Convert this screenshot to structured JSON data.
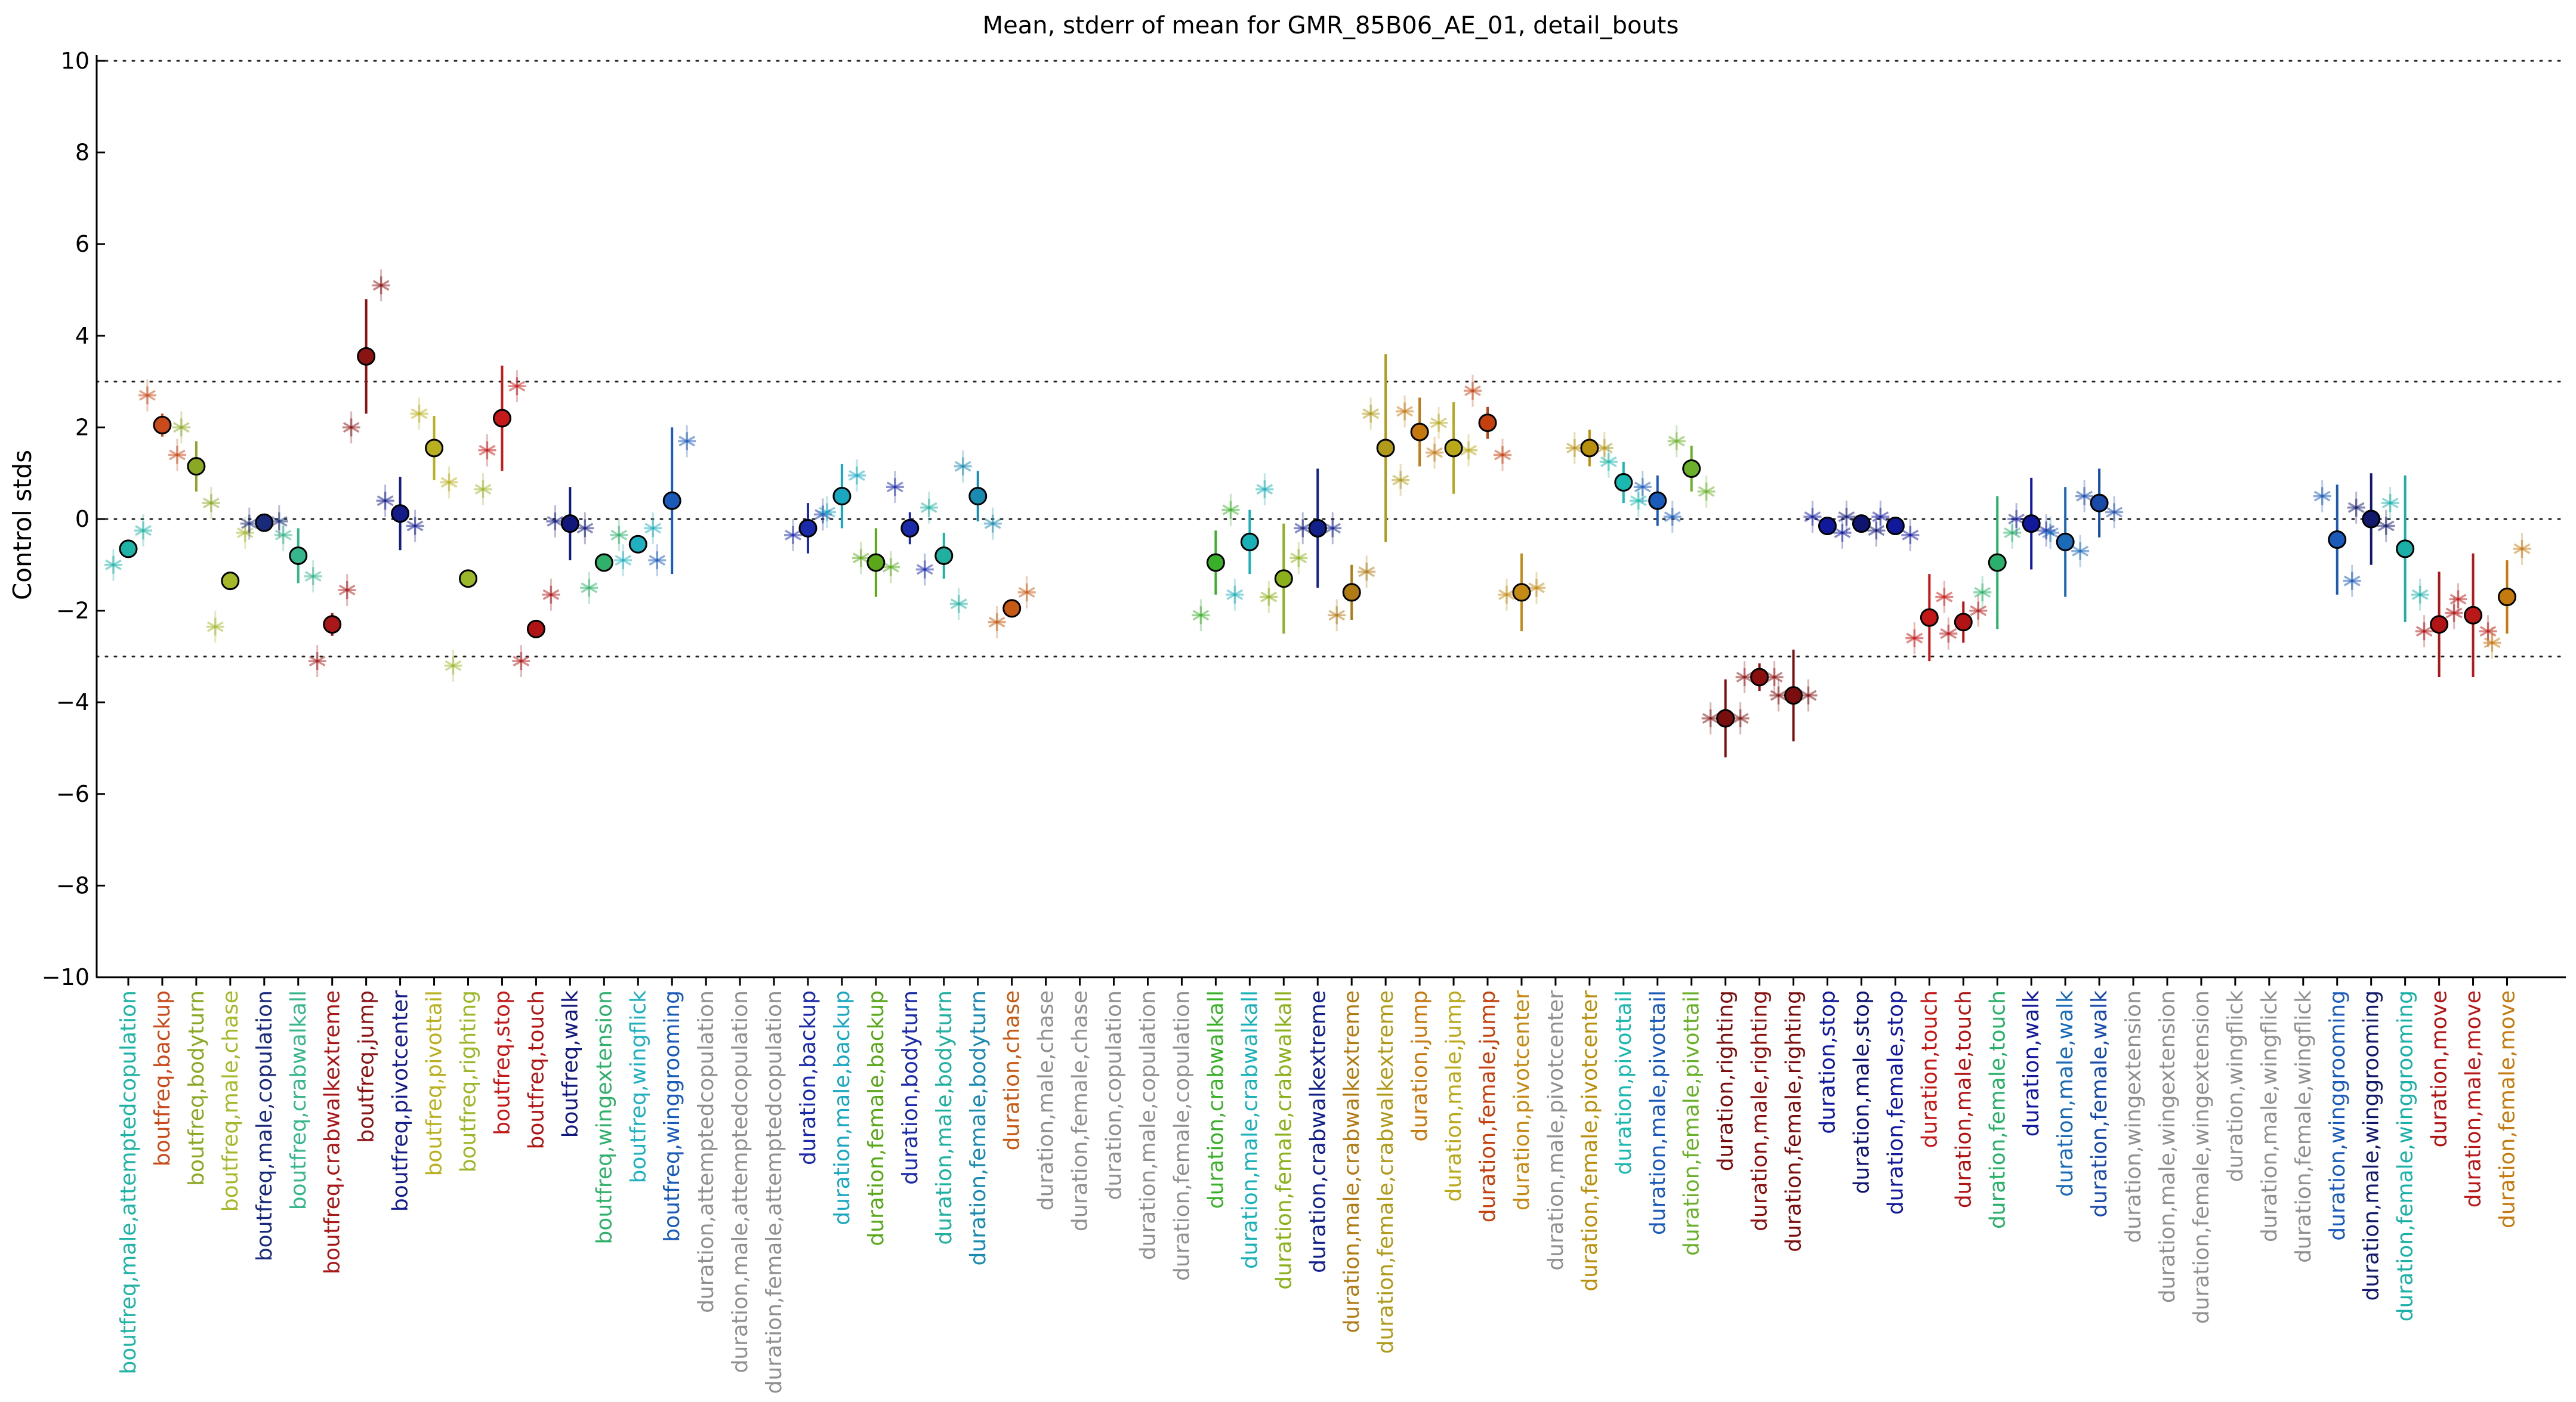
{
  "chart_data": {
    "type": "scatter",
    "title": "Mean, stderr of mean for GMR_85B06_AE_01, detail_bouts",
    "xlabel": "",
    "ylabel": "Control stds",
    "ylim": [
      -10,
      10
    ],
    "yticks": [
      -10,
      -8,
      -6,
      -4,
      -2,
      0,
      2,
      4,
      6,
      8,
      10
    ],
    "reference_lines": [
      10,
      3,
      0,
      -3,
      -10
    ],
    "grid": false,
    "legend": "none",
    "categories": [
      {
        "label": "boutfreq,male,attemptedcopulation",
        "color": "#1fb3a6",
        "mean": -0.65,
        "err": 0.1,
        "sub1": -1.0,
        "sub2": -0.25
      },
      {
        "label": "boutfreq,backup",
        "color": "#c94a1a",
        "mean": 2.05,
        "err": 0.25,
        "sub1": 2.7,
        "sub2": 1.4
      },
      {
        "label": "boutfreq,bodyturn",
        "color": "#8aa823",
        "mean": 1.15,
        "err": 0.55,
        "sub1": 2.0,
        "sub2": 0.35
      },
      {
        "label": "boutfreq,male,chase",
        "color": "#a6b82a",
        "mean": -1.35,
        "err": 0.1,
        "sub1": -2.35,
        "sub2": -0.3
      },
      {
        "label": "boutfreq,male,copulation",
        "color": "#1a2a7a",
        "mean": -0.08,
        "err": 0.05,
        "sub1": -0.1,
        "sub2": -0.05
      },
      {
        "label": "boutfreq,crabwalkall",
        "color": "#37b58c",
        "mean": -0.8,
        "err": 0.6,
        "sub1": -0.35,
        "sub2": -1.25
      },
      {
        "label": "boutfreq,crabwalkextreme",
        "color": "#a81818",
        "mean": -2.3,
        "err": 0.25,
        "sub1": -3.1,
        "sub2": -1.55
      },
      {
        "label": "boutfreq,jump",
        "color": "#8a1414",
        "mean": 3.55,
        "err": 1.25,
        "sub1": 2.0,
        "sub2": 5.1
      },
      {
        "label": "boutfreq,pivotcenter",
        "color": "#141c8a",
        "mean": 0.12,
        "err": 0.8,
        "sub1": 0.4,
        "sub2": -0.15
      },
      {
        "label": "boutfreq,pivottail",
        "color": "#b8b01e",
        "mean": 1.55,
        "err": 0.7,
        "sub1": 2.3,
        "sub2": 0.8
      },
      {
        "label": "boutfreq,righting",
        "color": "#9cb82a",
        "mean": -1.3,
        "err": 0.2,
        "sub1": -3.2,
        "sub2": 0.65
      },
      {
        "label": "boutfreq,stop",
        "color": "#c41a1a",
        "mean": 2.2,
        "err": 1.15,
        "sub1": 1.5,
        "sub2": 2.9
      },
      {
        "label": "boutfreq,touch",
        "color": "#b01414",
        "mean": -2.4,
        "err": 0.05,
        "sub1": -3.1,
        "sub2": -1.65
      },
      {
        "label": "boutfreq,walk",
        "color": "#12187a",
        "mean": -0.1,
        "err": 0.8,
        "sub1": -0.05,
        "sub2": -0.2
      },
      {
        "label": "boutfreq,wingextension",
        "color": "#30b06a",
        "mean": -0.95,
        "err": 0.05,
        "sub1": -1.5,
        "sub2": -0.35
      },
      {
        "label": "boutfreq,wingflick",
        "color": "#20b0c0",
        "mean": -0.55,
        "err": 0.05,
        "sub1": -0.9,
        "sub2": -0.2
      },
      {
        "label": "boutfreq,winggrooming",
        "color": "#1a5ab8",
        "mean": 0.4,
        "err": 1.6,
        "sub1": -0.9,
        "sub2": 1.7
      },
      {
        "label": "duration,attemptedcopulation",
        "color": "#909090"
      },
      {
        "label": "duration,male,attemptedcopulation",
        "color": "#909090"
      },
      {
        "label": "duration,female,attemptedcopulation",
        "color": "#909090"
      },
      {
        "label": "duration,backup",
        "color": "#1a2aa8",
        "mean": -0.2,
        "err": 0.55,
        "sub1": -0.35,
        "sub2": 0.1
      },
      {
        "label": "duration,male,backup",
        "color": "#1aa8c0",
        "mean": 0.5,
        "err": 0.7,
        "sub1": 0.15,
        "sub2": 0.95
      },
      {
        "label": "duration,female,backup",
        "color": "#5aa81a",
        "mean": -0.95,
        "err": 0.75,
        "sub1": -0.85,
        "sub2": -1.05
      },
      {
        "label": "duration,bodyturn",
        "color": "#1a2aa8",
        "mean": -0.2,
        "err": 0.35,
        "sub1": 0.7,
        "sub2": -1.1
      },
      {
        "label": "duration,male,bodyturn",
        "color": "#20b0a0",
        "mean": -0.8,
        "err": 0.5,
        "sub1": 0.25,
        "sub2": -1.85
      },
      {
        "label": "duration,female,bodyturn",
        "color": "#1a8ab0",
        "mean": 0.5,
        "err": 0.55,
        "sub1": 1.15,
        "sub2": -0.1
      },
      {
        "label": "duration,chase",
        "color": "#c45a14",
        "mean": -1.95,
        "err": 0.08,
        "sub1": -2.25,
        "sub2": -1.6
      },
      {
        "label": "duration,male,chase",
        "color": "#909090"
      },
      {
        "label": "duration,female,chase",
        "color": "#909090"
      },
      {
        "label": "duration,copulation",
        "color": "#909090"
      },
      {
        "label": "duration,male,copulation",
        "color": "#909090"
      },
      {
        "label": "duration,female,copulation",
        "color": "#909090"
      },
      {
        "label": "duration,crabwalkall",
        "color": "#3ab02a",
        "mean": -0.95,
        "err": 0.7,
        "sub1": -2.1,
        "sub2": 0.2
      },
      {
        "label": "duration,male,crabwalkall",
        "color": "#1ab0b8",
        "mean": -0.5,
        "err": 0.7,
        "sub1": -1.65,
        "sub2": 0.65
      },
      {
        "label": "duration,female,crabwalkall",
        "color": "#8ab01a",
        "mean": -1.3,
        "err": 1.2,
        "sub1": -1.7,
        "sub2": -0.85
      },
      {
        "label": "duration,crabwalkextreme",
        "color": "#12208a",
        "mean": -0.2,
        "err": 1.3,
        "sub1": -0.2,
        "sub2": -0.2
      },
      {
        "label": "duration,male,crabwalkextreme",
        "color": "#b07a14",
        "mean": -1.6,
        "err": 0.6,
        "sub1": -2.1,
        "sub2": -1.15
      },
      {
        "label": "duration,female,crabwalkextreme",
        "color": "#b09a1a",
        "mean": 1.55,
        "err": 2.05,
        "sub1": 2.3,
        "sub2": 0.85
      },
      {
        "label": "duration,jump",
        "color": "#c4780e",
        "mean": 1.9,
        "err": 0.75,
        "sub1": 2.35,
        "sub2": 1.45
      },
      {
        "label": "duration,male,jump",
        "color": "#b8a81a",
        "mean": 1.55,
        "err": 1.0,
        "sub1": 2.1,
        "sub2": 1.5
      },
      {
        "label": "duration,female,jump",
        "color": "#c4400e",
        "mean": 2.1,
        "err": 0.35,
        "sub1": 2.8,
        "sub2": 1.4
      },
      {
        "label": "duration,pivotcenter",
        "color": "#c48a14",
        "mean": -1.6,
        "err": 0.85,
        "sub1": -1.65,
        "sub2": -1.5
      },
      {
        "label": "duration,male,pivotcenter",
        "color": "#909090"
      },
      {
        "label": "duration,female,pivotcenter",
        "color": "#b8900e",
        "mean": 1.55,
        "err": 0.4,
        "sub1": 1.55,
        "sub2": 1.55
      },
      {
        "label": "duration,pivottail",
        "color": "#1ab8b0",
        "mean": 0.8,
        "err": 0.45,
        "sub1": 1.25,
        "sub2": 0.4
      },
      {
        "label": "duration,male,pivottail",
        "color": "#1a5ab8",
        "mean": 0.4,
        "err": 0.55,
        "sub1": 0.7,
        "sub2": 0.05
      },
      {
        "label": "duration,female,pivottail",
        "color": "#6ab02a",
        "mean": 1.1,
        "err": 0.5,
        "sub1": 1.7,
        "sub2": 0.6
      },
      {
        "label": "duration,righting",
        "color": "#7a0e0e",
        "mean": -4.35,
        "err": 0.85,
        "sub1": -4.35,
        "sub2": -4.35
      },
      {
        "label": "duration,male,righting",
        "color": "#8a1010",
        "mean": -3.45,
        "err": 0.3,
        "sub1": -3.45,
        "sub2": -3.45
      },
      {
        "label": "duration,female,righting",
        "color": "#7a0e0e",
        "mean": -3.85,
        "err": 1.0,
        "sub1": -3.85,
        "sub2": -3.85
      },
      {
        "label": "duration,stop",
        "color": "#12189a",
        "mean": -0.15,
        "err": 0.12,
        "sub1": 0.05,
        "sub2": -0.3
      },
      {
        "label": "duration,male,stop",
        "color": "#0e1470",
        "mean": -0.1,
        "err": 0.1,
        "sub1": 0.05,
        "sub2": -0.25
      },
      {
        "label": "duration,female,stop",
        "color": "#12189a",
        "mean": -0.15,
        "err": 0.2,
        "sub1": 0.05,
        "sub2": -0.35
      },
      {
        "label": "duration,touch",
        "color": "#c41818",
        "mean": -2.15,
        "err": 0.95,
        "sub1": -2.6,
        "sub2": -1.7
      },
      {
        "label": "duration,male,touch",
        "color": "#b01414",
        "mean": -2.25,
        "err": 0.45,
        "sub1": -2.5,
        "sub2": -2.0
      },
      {
        "label": "duration,female,touch",
        "color": "#2ab06a",
        "mean": -0.95,
        "err": 1.45,
        "sub1": -1.6,
        "sub2": -0.3
      },
      {
        "label": "duration,walk",
        "color": "#12189a",
        "mean": -0.1,
        "err": 1.0,
        "sub1": 0.0,
        "sub2": -0.25
      },
      {
        "label": "duration,male,walk",
        "color": "#1a6ab8",
        "mean": -0.5,
        "err": 1.2,
        "sub1": -0.3,
        "sub2": -0.7
      },
      {
        "label": "duration,female,walk",
        "color": "#1a4aa8",
        "mean": 0.35,
        "err": 0.75,
        "sub1": 0.5,
        "sub2": 0.15
      },
      {
        "label": "duration,wingextension",
        "color": "#909090"
      },
      {
        "label": "duration,male,wingextension",
        "color": "#909090"
      },
      {
        "label": "duration,female,wingextension",
        "color": "#909090"
      },
      {
        "label": "duration,wingflick",
        "color": "#909090"
      },
      {
        "label": "duration,male,wingflick",
        "color": "#909090"
      },
      {
        "label": "duration,female,wingflick",
        "color": "#909090"
      },
      {
        "label": "duration,winggrooming",
        "color": "#1a5ab8",
        "mean": -0.45,
        "err": 1.2,
        "sub1": 0.5,
        "sub2": -1.35
      },
      {
        "label": "duration,male,winggrooming",
        "color": "#12186a",
        "mean": 0.0,
        "err": 1.0,
        "sub1": 0.25,
        "sub2": -0.15
      },
      {
        "label": "duration,female,winggrooming",
        "color": "#1ab0a8",
        "mean": -0.65,
        "err": 1.6,
        "sub1": 0.35,
        "sub2": -1.65
      },
      {
        "label": "duration,move",
        "color": "#b01414",
        "mean": -2.3,
        "err": 1.15,
        "sub1": -2.45,
        "sub2": -2.05
      },
      {
        "label": "duration,male,move",
        "color": "#b81818",
        "mean": -2.1,
        "err": 1.35,
        "sub1": -1.75,
        "sub2": -2.45
      },
      {
        "label": "duration,female,move",
        "color": "#c47a0e",
        "mean": -1.7,
        "err": 0.8,
        "sub1": -2.7,
        "sub2": -0.65
      }
    ]
  }
}
